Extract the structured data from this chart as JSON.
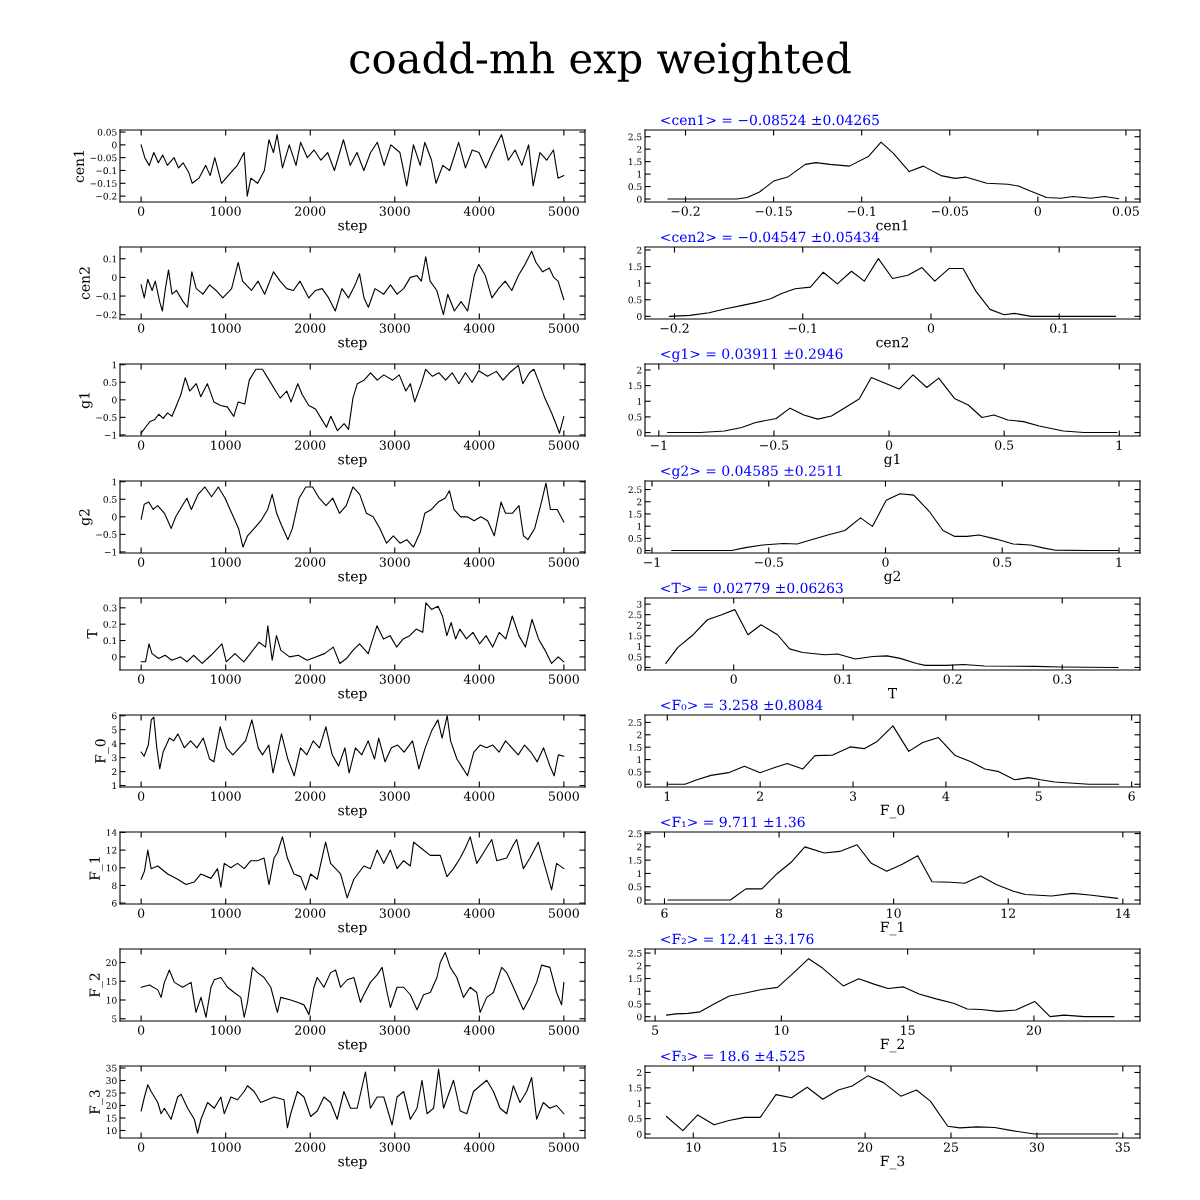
{
  "chart_data": [
    {
      "type": "line",
      "title": "coadd-mh exp weighted",
      "xlabel": "step",
      "ylabel": "cen1",
      "xlim": [
        -250,
        5250
      ],
      "xticks": [
        0,
        1000,
        2000,
        3000,
        4000,
        5000
      ],
      "ylim": [
        -0.223,
        0.058
      ],
      "yticks": [
        -0.2,
        -0.15,
        -0.1,
        -0.05,
        0,
        0.05
      ],
      "color": "#000000",
      "x": [
        0,
        43,
        96,
        150,
        203,
        256,
        310,
        390,
        443,
        497,
        566,
        604,
        684,
        764,
        817,
        871,
        951,
        1004,
        1084,
        1138,
        1218,
        1255,
        1298,
        1378,
        1458,
        1512,
        1565,
        1608,
        1672,
        1752,
        1832,
        1886,
        1966,
        2046,
        2126,
        2206,
        2286,
        2393,
        2473,
        2553,
        2634,
        2714,
        2794,
        2874,
        2954,
        3061,
        3141,
        3221,
        3301,
        3355,
        3435,
        3488,
        3568,
        3649,
        3755,
        3836,
        3916,
        3996,
        4076,
        4156,
        4263,
        4343,
        4423,
        4503,
        4583,
        4637,
        4717,
        4797,
        4877,
        4931,
        5000
      ],
      "values": [
        0,
        -0.05,
        -0.08,
        -0.03,
        -0.07,
        -0.04,
        -0.08,
        -0.05,
        -0.09,
        -0.07,
        -0.11,
        -0.15,
        -0.13,
        -0.08,
        -0.12,
        -0.05,
        -0.15,
        -0.13,
        -0.1,
        -0.08,
        -0.03,
        -0.2,
        -0.13,
        -0.15,
        -0.1,
        0.02,
        -0.03,
        0.04,
        -0.09,
        0,
        -0.08,
        0.01,
        -0.05,
        -0.02,
        -0.06,
        -0.03,
        -0.1,
        0.02,
        -0.08,
        -0.03,
        -0.1,
        -0.03,
        0.01,
        -0.08,
        0,
        -0.03,
        -0.16,
        0,
        -0.08,
        0.01,
        -0.06,
        -0.15,
        -0.08,
        -0.1,
        0.01,
        -0.09,
        -0.02,
        -0.03,
        -0.09,
        -0.03,
        0.04,
        -0.06,
        -0.02,
        -0.08,
        0,
        -0.16,
        -0.03,
        -0.06,
        -0.02,
        -0.13,
        -0.12
      ]
    },
    {
      "type": "line",
      "xlabel": "cen1",
      "annotations": [
        "<cen1> = −0.08524 ±0.04265"
      ],
      "xlim": [
        -0.223,
        0.058
      ],
      "xticks": [
        -0.2,
        -0.15,
        -0.1,
        -0.05,
        0,
        0.05
      ],
      "ylim": [
        -0.12,
        2.77
      ],
      "yticks": [
        0,
        0.5,
        1,
        1.5,
        2,
        2.5
      ],
      "color": "#000000",
      "x": [
        -0.21,
        -0.171,
        -0.165,
        -0.158,
        -0.15,
        -0.142,
        -0.132,
        -0.126,
        -0.118,
        -0.107,
        -0.096,
        -0.089,
        -0.082,
        -0.073,
        -0.065,
        -0.055,
        -0.047,
        -0.041,
        -0.029,
        -0.017,
        -0.011,
        -0.005,
        0.005,
        0.013,
        0.02,
        0.03,
        0.038,
        0.046
      ],
      "values": [
        0,
        0,
        0.06,
        0.28,
        0.72,
        0.88,
        1.39,
        1.46,
        1.39,
        1.32,
        1.72,
        2.28,
        1.83,
        1.1,
        1.32,
        0.94,
        0.83,
        0.88,
        0.63,
        0.59,
        0.52,
        0.34,
        0.06,
        0.03,
        0.1,
        0.03,
        0.1,
        0.01
      ]
    },
    {
      "type": "line",
      "xlabel": "step",
      "ylabel": "cen2",
      "xlim": [
        -250,
        5250
      ],
      "xticks": [
        0,
        1000,
        2000,
        3000,
        4000,
        5000
      ],
      "ylim": [
        -0.223,
        0.163
      ],
      "yticks": [
        -0.2,
        -0.1,
        0,
        0.1
      ],
      "color": "#000000",
      "x": [
        0,
        37,
        78,
        130,
        167,
        219,
        251,
        287,
        324,
        365,
        418,
        496,
        548,
        600,
        652,
        731,
        809,
        887,
        966,
        1070,
        1148,
        1200,
        1305,
        1383,
        1461,
        1566,
        1644,
        1722,
        1801,
        1879,
        1983,
        2062,
        2140,
        2218,
        2296,
        2375,
        2453,
        2531,
        2583,
        2636,
        2688,
        2766,
        2870,
        2949,
        3027,
        3105,
        3184,
        3262,
        3314,
        3366,
        3418,
        3497,
        3575,
        3627,
        3705,
        3784,
        3862,
        3940,
        3993,
        4071,
        4149,
        4227,
        4306,
        4384,
        4462,
        4541,
        4619,
        4671,
        4749,
        4828,
        4880,
        4932,
        5000
      ],
      "values": [
        -0.04,
        -0.11,
        -0.01,
        -0.07,
        -0.02,
        -0.13,
        -0.18,
        -0.06,
        0.04,
        -0.09,
        -0.07,
        -0.13,
        -0.16,
        0.03,
        -0.06,
        -0.09,
        -0.04,
        -0.07,
        -0.11,
        -0.06,
        0.08,
        -0.02,
        -0.07,
        -0.02,
        -0.09,
        0.03,
        -0.02,
        -0.06,
        -0.07,
        -0.02,
        -0.11,
        -0.07,
        -0.06,
        -0.11,
        -0.18,
        -0.06,
        -0.11,
        -0.04,
        0.02,
        -0.11,
        -0.16,
        -0.06,
        -0.09,
        -0.04,
        -0.09,
        -0.06,
        0,
        0.01,
        -0.02,
        0.11,
        -0.02,
        -0.07,
        -0.2,
        -0.09,
        -0.18,
        -0.13,
        -0.18,
        0.01,
        0.07,
        0.01,
        -0.11,
        -0.06,
        -0.02,
        -0.07,
        0.01,
        0.07,
        0.14,
        0.08,
        0.03,
        0.05,
        0,
        -0.02,
        -0.12
      ]
    },
    {
      "type": "line",
      "xlabel": "cen2",
      "annotations": [
        "<cen2> = −0.04547 ±0.05434"
      ],
      "xlim": [
        -0.223,
        0.163
      ],
      "xticks": [
        -0.2,
        -0.1,
        0,
        0.1
      ],
      "ylim": [
        -0.08,
        2.09
      ],
      "yticks": [
        0,
        0.5,
        1,
        1.5,
        2
      ],
      "color": "#000000",
      "x": [
        -0.204,
        -0.188,
        -0.173,
        -0.16,
        -0.147,
        -0.136,
        -0.125,
        -0.117,
        -0.106,
        -0.094,
        -0.084,
        -0.073,
        -0.062,
        -0.052,
        -0.041,
        -0.03,
        -0.018,
        -0.007,
        0.003,
        0.014,
        0.025,
        0.035,
        0.046,
        0.057,
        0.065,
        0.078,
        0.094,
        0.144
      ],
      "values": [
        0,
        0.03,
        0.11,
        0.23,
        0.33,
        0.42,
        0.53,
        0.68,
        0.83,
        0.88,
        1.33,
        0.98,
        1.36,
        1.06,
        1.74,
        1.14,
        1.24,
        1.47,
        1.06,
        1.44,
        1.44,
        0.76,
        0.21,
        0.05,
        0.09,
        0,
        0,
        0
      ]
    },
    {
      "type": "line",
      "xlabel": "step",
      "ylabel": "g1",
      "xlim": [
        -250,
        5250
      ],
      "xticks": [
        0,
        1000,
        2000,
        3000,
        4000,
        5000
      ],
      "ylim": [
        -1.03,
        1.02
      ],
      "yticks": [
        -1,
        -0.5,
        0,
        0.5,
        1
      ],
      "color": "#000000",
      "x": [
        0,
        52,
        104,
        157,
        209,
        261,
        313,
        365,
        418,
        470,
        522,
        574,
        652,
        705,
        783,
        861,
        939,
        1018,
        1096,
        1148,
        1226,
        1279,
        1357,
        1435,
        1514,
        1592,
        1644,
        1722,
        1774,
        1853,
        1905,
        1983,
        2062,
        2140,
        2192,
        2244,
        2322,
        2401,
        2453,
        2505,
        2557,
        2636,
        2714,
        2792,
        2870,
        2975,
        3053,
        3131,
        3184,
        3236,
        3314,
        3366,
        3445,
        3523,
        3601,
        3679,
        3758,
        3836,
        3914,
        3993,
        4097,
        4201,
        4280,
        4358,
        4462,
        4514,
        4593,
        4645,
        4697,
        4775,
        4854,
        4906,
        4948,
        5000
      ],
      "values": [
        -0.95,
        -0.78,
        -0.62,
        -0.57,
        -0.41,
        -0.53,
        -0.37,
        -0.47,
        -0.16,
        0.15,
        0.63,
        0.25,
        0.46,
        0.09,
        0.46,
        -0.06,
        -0.16,
        -0.2,
        -0.47,
        -0.06,
        -0.12,
        0.56,
        0.87,
        0.87,
        0.56,
        0.25,
        0.05,
        0.25,
        -0.06,
        0.46,
        0.15,
        -0.16,
        -0.26,
        -0.57,
        -0.78,
        -0.47,
        -0.88,
        -0.68,
        -0.84,
        0.05,
        0.46,
        0.56,
        0.77,
        0.56,
        0.71,
        0.56,
        0.71,
        0.25,
        0.46,
        -0.06,
        0.46,
        0.87,
        0.67,
        0.77,
        0.56,
        0.77,
        0.46,
        0.77,
        0.5,
        0.83,
        0.67,
        0.81,
        0.56,
        0.77,
        0.98,
        0.46,
        0.77,
        0.87,
        0.56,
        0.05,
        -0.37,
        -0.68,
        -0.95,
        -0.47
      ]
    },
    {
      "type": "line",
      "xlabel": "g1",
      "annotations": [
        "<g1> = 0.03911 ±0.2946"
      ],
      "xlim": [
        -1.06,
        1.09
      ],
      "xticks": [
        -1,
        -0.5,
        0,
        0.5,
        1
      ],
      "ylim": [
        -0.11,
        2.19
      ],
      "yticks": [
        0,
        0.5,
        1,
        1.5,
        2
      ],
      "color": "#000000",
      "x": [
        -0.962,
        -0.82,
        -0.715,
        -0.64,
        -0.58,
        -0.49,
        -0.43,
        -0.37,
        -0.31,
        -0.25,
        -0.19,
        -0.13,
        -0.077,
        -0.009,
        0.044,
        0.104,
        0.164,
        0.216,
        0.284,
        0.344,
        0.404,
        0.456,
        0.516,
        0.584,
        0.652,
        0.757,
        0.847,
        0.99
      ],
      "values": [
        0,
        0,
        0.05,
        0.16,
        0.32,
        0.45,
        0.78,
        0.56,
        0.43,
        0.53,
        0.8,
        1.07,
        1.76,
        1.55,
        1.39,
        1.84,
        1.44,
        1.74,
        1.09,
        0.88,
        0.48,
        0.56,
        0.4,
        0.35,
        0.21,
        0.05,
        0,
        0
      ]
    },
    {
      "type": "line",
      "xlabel": "step",
      "ylabel": "g2",
      "xlim": [
        -250,
        5250
      ],
      "xticks": [
        0,
        1000,
        2000,
        3000,
        4000,
        5000
      ],
      "ylim": [
        -1.03,
        1.02
      ],
      "yticks": [
        -1,
        -0.5,
        0,
        0.5,
        1
      ],
      "color": "#000000",
      "x": [
        0,
        37,
        90,
        143,
        196,
        276,
        356,
        409,
        488,
        541,
        594,
        674,
        754,
        833,
        913,
        993,
        1072,
        1152,
        1205,
        1258,
        1338,
        1417,
        1497,
        1550,
        1603,
        1656,
        1736,
        1789,
        1868,
        1948,
        2028,
        2107,
        2187,
        2267,
        2346,
        2426,
        2505,
        2585,
        2665,
        2744,
        2824,
        2903,
        2983,
        3063,
        3142,
        3222,
        3302,
        3355,
        3434,
        3514,
        3594,
        3647,
        3700,
        3779,
        3859,
        3939,
        4018,
        4098,
        4177,
        4257,
        4310,
        4390,
        4469,
        4522,
        4575,
        4655,
        4735,
        4788,
        4841,
        4921,
        5000
      ],
      "values": [
        -0.07,
        0.36,
        0.42,
        0.21,
        0.32,
        0.1,
        -0.33,
        0,
        0.32,
        0.53,
        0.21,
        0.64,
        0.85,
        0.57,
        0.85,
        0.53,
        0.1,
        -0.33,
        -0.86,
        -0.54,
        -0.33,
        -0.11,
        0.21,
        0.64,
        0.1,
        -0.22,
        -0.65,
        -0.33,
        0.53,
        0.85,
        0.85,
        0.53,
        0.32,
        0.53,
        0.1,
        0.32,
        0.85,
        0.64,
        0.1,
        0,
        -0.33,
        -0.75,
        -0.54,
        -0.75,
        -0.65,
        -0.86,
        -0.43,
        0.1,
        0.21,
        0.42,
        0.53,
        0.74,
        0.21,
        0,
        0,
        -0.11,
        0,
        -0.11,
        -0.54,
        0.42,
        0.1,
        0.1,
        0.32,
        -0.54,
        -0.65,
        -0.33,
        0.42,
        0.96,
        0.21,
        0.21,
        -0.15
      ]
    },
    {
      "type": "line",
      "xlabel": "g2",
      "annotations": [
        "<g2> = 0.04585 ±0.2511"
      ],
      "xlim": [
        -1.03,
        1.09
      ],
      "xticks": [
        -1,
        -0.5,
        0,
        0.5,
        1
      ],
      "ylim": [
        -0.1,
        2.85
      ],
      "yticks": [
        0,
        0.5,
        1,
        1.5,
        2,
        2.5
      ],
      "color": "#000000",
      "x": [
        -0.916,
        -0.659,
        -0.6,
        -0.526,
        -0.438,
        -0.379,
        -0.306,
        -0.247,
        -0.174,
        -0.107,
        -0.056,
        0.003,
        0.062,
        0.121,
        0.187,
        0.246,
        0.297,
        0.349,
        0.4,
        0.474,
        0.547,
        0.621,
        0.679,
        0.724,
        0.871,
        0.996
      ],
      "values": [
        0,
        0,
        0.12,
        0.23,
        0.29,
        0.27,
        0.47,
        0.64,
        0.82,
        1.34,
        0.99,
        2.06,
        2.33,
        2.27,
        1.61,
        0.82,
        0.58,
        0.58,
        0.64,
        0.47,
        0.27,
        0.23,
        0.1,
        0.02,
        0,
        0
      ]
    },
    {
      "type": "line",
      "xlabel": "step",
      "ylabel": "T",
      "xlim": [
        -250,
        5250
      ],
      "xticks": [
        0,
        1000,
        2000,
        3000,
        4000,
        5000
      ],
      "ylim": [
        -0.08,
        0.36
      ],
      "yticks": [
        0,
        0.1,
        0.2,
        0.3
      ],
      "color": "#000000",
      "x": [
        0,
        52,
        93,
        129,
        207,
        284,
        362,
        465,
        542,
        620,
        723,
        826,
        956,
        1007,
        1110,
        1214,
        1291,
        1395,
        1472,
        1498,
        1550,
        1601,
        1653,
        1756,
        1859,
        1963,
        2066,
        2169,
        2273,
        2350,
        2428,
        2505,
        2583,
        2686,
        2789,
        2867,
        2944,
        3022,
        3099,
        3177,
        3254,
        3331,
        3368,
        3435,
        3512,
        3564,
        3616,
        3667,
        3719,
        3770,
        3848,
        3925,
        4003,
        4080,
        4158,
        4235,
        4313,
        4390,
        4468,
        4545,
        4623,
        4700,
        4778,
        4855,
        4933,
        5000
      ],
      "values": [
        -0.03,
        -0.03,
        0.08,
        0.02,
        -0.01,
        0.01,
        -0.02,
        0,
        -0.03,
        0.01,
        -0.04,
        0.01,
        0.08,
        -0.03,
        0.02,
        -0.03,
        0.02,
        0.09,
        0.06,
        0.19,
        -0.02,
        0.13,
        0.04,
        0,
        0.01,
        -0.02,
        0,
        0.02,
        0.06,
        -0.04,
        -0.01,
        0.04,
        0.08,
        0.02,
        0.19,
        0.11,
        0.13,
        0.06,
        0.11,
        0.13,
        0.17,
        0.15,
        0.33,
        0.29,
        0.31,
        0.25,
        0.13,
        0.21,
        0.11,
        0.17,
        0.11,
        0.15,
        0.08,
        0.13,
        0.06,
        0.15,
        0.11,
        0.25,
        0.13,
        0.06,
        0.23,
        0.11,
        0.04,
        -0.04,
        0,
        -0.03
      ]
    },
    {
      "type": "line",
      "xlabel": "T",
      "annotations": [
        "<T> = 0.02779 ±0.06263"
      ],
      "xlim": [
        -0.081,
        0.371
      ],
      "xticks": [
        0,
        0.1,
        0.2,
        0.3
      ],
      "ylim": [
        -0.12,
        3.29
      ],
      "yticks": [
        0,
        0.5,
        1,
        1.5,
        2,
        2.5,
        3
      ],
      "color": "#000000",
      "x": [
        -0.062,
        -0.051,
        -0.037,
        -0.024,
        -0.011,
        0.001,
        0.013,
        0.025,
        0.04,
        0.051,
        0.063,
        0.083,
        0.095,
        0.111,
        0.127,
        0.14,
        0.152,
        0.167,
        0.175,
        0.194,
        0.21,
        0.229,
        0.276,
        0.298,
        0.351
      ],
      "values": [
        0.19,
        0.95,
        1.55,
        2.26,
        2.5,
        2.74,
        1.55,
        2.02,
        1.55,
        0.88,
        0.71,
        0.6,
        0.64,
        0.4,
        0.52,
        0.55,
        0.43,
        0.19,
        0.1,
        0.1,
        0.14,
        0.07,
        0.05,
        0.02,
        0
      ]
    },
    {
      "type": "line",
      "xlabel": "step",
      "ylabel": "F_0",
      "xlim": [
        -250,
        5250
      ],
      "xticks": [
        0,
        1000,
        2000,
        3000,
        4000,
        5000
      ],
      "ylim": [
        0.9,
        6.05
      ],
      "yticks": [
        1,
        2,
        3,
        4,
        5,
        6
      ],
      "color": "#000000",
      "x": [
        0,
        35,
        85,
        120,
        150,
        185,
        220,
        260,
        335,
        385,
        435,
        510,
        585,
        660,
        735,
        810,
        860,
        935,
        1010,
        1085,
        1160,
        1235,
        1310,
        1385,
        1435,
        1510,
        1560,
        1660,
        1735,
        1810,
        1885,
        1960,
        2035,
        2110,
        2185,
        2260,
        2335,
        2410,
        2460,
        2535,
        2610,
        2685,
        2760,
        2810,
        2885,
        2960,
        3035,
        3110,
        3210,
        3285,
        3360,
        3435,
        3510,
        3560,
        3620,
        3660,
        3735,
        3810,
        3860,
        3935,
        4010,
        4085,
        4160,
        4235,
        4310,
        4385,
        4460,
        4535,
        4610,
        4685,
        4760,
        4835,
        4885,
        4935,
        5000
      ],
      "values": [
        3.4,
        3.1,
        3.9,
        5.7,
        5.9,
        3.7,
        2.2,
        3.4,
        4.4,
        4.2,
        4.7,
        3.7,
        4.2,
        3.7,
        4.4,
        2.9,
        2.7,
        5.2,
        3.7,
        3.2,
        3.7,
        4.2,
        5.7,
        3.7,
        3.2,
        3.9,
        1.9,
        4.7,
        2.9,
        1.7,
        3.7,
        3.2,
        4.2,
        3.7,
        5.2,
        3.2,
        2.4,
        3.7,
        1.9,
        3.7,
        3.2,
        4.2,
        2.9,
        4.4,
        2.7,
        3.7,
        3.9,
        3.4,
        4.2,
        2.2,
        3.7,
        4.9,
        5.7,
        4.4,
        6.0,
        4.2,
        2.9,
        2.2,
        1.7,
        3.4,
        3.9,
        3.7,
        3.9,
        3.4,
        4.2,
        3.7,
        3.2,
        3.9,
        3.4,
        2.7,
        3.7,
        2.4,
        1.7,
        3.2,
        3.1
      ]
    },
    {
      "type": "line",
      "xlabel": "F_0",
      "annotations": [
        "<F₀> = 3.258 ±0.8084"
      ],
      "xlim": [
        0.76,
        6.09
      ],
      "xticks": [
        1,
        2,
        3,
        4,
        5,
        6
      ],
      "ylim": [
        -0.11,
        2.8
      ],
      "yticks": [
        0,
        0.5,
        1,
        1.5,
        2,
        2.5
      ],
      "color": "#000000",
      "x": [
        1.0,
        1.19,
        1.32,
        1.47,
        1.66,
        1.83,
        2.0,
        2.15,
        2.29,
        2.46,
        2.59,
        2.78,
        2.97,
        3.12,
        3.26,
        3.43,
        3.6,
        3.75,
        3.92,
        4.1,
        4.27,
        4.42,
        4.57,
        4.74,
        4.89,
        5.02,
        5.17,
        5.54,
        5.86
      ],
      "values": [
        0,
        0,
        0.18,
        0.36,
        0.47,
        0.73,
        0.47,
        0.67,
        0.84,
        0.62,
        1.16,
        1.18,
        1.51,
        1.44,
        1.73,
        2.36,
        1.33,
        1.69,
        1.89,
        1.16,
        0.91,
        0.62,
        0.51,
        0.18,
        0.27,
        0.18,
        0.09,
        0,
        0
      ]
    },
    {
      "type": "line",
      "xlabel": "step",
      "ylabel": "F_1",
      "xlim": [
        -250,
        5250
      ],
      "xticks": [
        0,
        1000,
        2000,
        3000,
        4000,
        5000
      ],
      "ylim": [
        5.9,
        14.05
      ],
      "yticks": [
        6,
        8,
        10,
        12,
        14
      ],
      "color": "#000000",
      "x": [
        0,
        39,
        79,
        118,
        197,
        314,
        432,
        531,
        629,
        708,
        826,
        904,
        943,
        983,
        1061,
        1140,
        1219,
        1297,
        1376,
        1454,
        1513,
        1572,
        1612,
        1671,
        1730,
        1808,
        1887,
        1946,
        2005,
        2083,
        2182,
        2241,
        2359,
        2437,
        2516,
        2634,
        2712,
        2791,
        2870,
        2948,
        3027,
        3105,
        3184,
        3223,
        3302,
        3420,
        3538,
        3617,
        3695,
        3774,
        3833,
        3892,
        3970,
        4049,
        4147,
        4206,
        4324,
        4403,
        4442,
        4521,
        4599,
        4697,
        4757,
        4855,
        4914,
        5000
      ],
      "values": [
        8.7,
        9.6,
        12.0,
        9.9,
        10.2,
        9.3,
        8.7,
        8.1,
        8.4,
        9.3,
        8.8,
        9.9,
        7.8,
        10.5,
        10.0,
        10.5,
        9.9,
        10.8,
        10.8,
        11.1,
        8.1,
        11.1,
        11.7,
        13.5,
        11.1,
        9.3,
        9.0,
        7.5,
        9.3,
        8.7,
        12.9,
        10.5,
        9.3,
        6.6,
        8.7,
        10.2,
        9.9,
        12.0,
        10.5,
        12.0,
        9.9,
        10.8,
        10.2,
        12.9,
        12.3,
        11.4,
        11.4,
        9.0,
        9.9,
        11.1,
        12.2,
        13.5,
        10.5,
        11.7,
        13.2,
        10.8,
        11.1,
        12.6,
        13.2,
        9.9,
        11.1,
        12.9,
        10.8,
        7.5,
        10.5,
        9.9
      ]
    },
    {
      "type": "line",
      "xlabel": "F_1",
      "annotations": [
        "<F₁> = 9.711 ±1.36"
      ],
      "xlim": [
        5.66,
        14.3
      ],
      "xticks": [
        6,
        8,
        10,
        12,
        14
      ],
      "ylim": [
        -0.15,
        2.56
      ],
      "yticks": [
        0,
        0.5,
        1,
        1.5,
        2,
        2.5
      ],
      "color": "#000000",
      "x": [
        6.06,
        7.15,
        7.42,
        7.7,
        7.97,
        8.21,
        8.45,
        8.79,
        9.06,
        9.36,
        9.61,
        9.88,
        10.15,
        10.42,
        10.67,
        11.0,
        11.24,
        11.52,
        11.79,
        12.09,
        12.3,
        12.76,
        13.12,
        13.42,
        13.91
      ],
      "values": [
        0,
        0,
        0.42,
        0.42,
        1.0,
        1.42,
        2.0,
        1.77,
        1.83,
        2.08,
        1.38,
        1.08,
        1.35,
        1.67,
        0.69,
        0.67,
        0.63,
        0.9,
        0.58,
        0.33,
        0.21,
        0.15,
        0.25,
        0.19,
        0.06
      ]
    },
    {
      "type": "line",
      "xlabel": "step",
      "ylabel": "F_2",
      "xlim": [
        -250,
        5250
      ],
      "xticks": [
        0,
        1000,
        2000,
        3000,
        4000,
        5000
      ],
      "ylim": [
        4.4,
        23.6
      ],
      "yticks": [
        5,
        10,
        15,
        20
      ],
      "color": "#000000",
      "x": [
        0,
        98,
        197,
        236,
        275,
        334,
        393,
        491,
        590,
        649,
        708,
        767,
        826,
        865,
        943,
        1022,
        1101,
        1179,
        1219,
        1258,
        1317,
        1376,
        1454,
        1533,
        1612,
        1651,
        1769,
        1848,
        1926,
        1985,
        2044,
        2083,
        2162,
        2241,
        2300,
        2359,
        2437,
        2516,
        2594,
        2634,
        2712,
        2791,
        2850,
        2909,
        2948,
        3027,
        3105,
        3184,
        3263,
        3341,
        3420,
        3499,
        3538,
        3597,
        3656,
        3734,
        3813,
        3892,
        3970,
        4010,
        4088,
        4167,
        4265,
        4324,
        4403,
        4481,
        4521,
        4599,
        4678,
        4737,
        4835,
        4914,
        4973,
        5000
      ],
      "values": [
        13.4,
        14.0,
        12.7,
        10.7,
        14.7,
        18.0,
        14.7,
        13.4,
        14.7,
        6.7,
        10.7,
        5.4,
        13.4,
        15.4,
        16.0,
        13.4,
        12.0,
        10.7,
        5.4,
        9.4,
        18.7,
        17.3,
        16.0,
        13.4,
        6.7,
        10.7,
        10.0,
        9.4,
        8.7,
        6.1,
        13.4,
        16.0,
        13.4,
        17.3,
        18.0,
        13.4,
        15.4,
        16.0,
        9.4,
        11.4,
        14.7,
        16.7,
        18.7,
        12.0,
        8.0,
        13.4,
        13.4,
        11.4,
        7.4,
        11.4,
        12.0,
        16.0,
        20.0,
        22.7,
        18.7,
        16.0,
        10.7,
        13.4,
        12.0,
        6.7,
        10.7,
        12.0,
        18.7,
        17.3,
        13.4,
        9.4,
        7.4,
        10.7,
        14.7,
        19.3,
        18.7,
        12.0,
        8.7,
        14.7
      ]
    },
    {
      "type": "line",
      "xlabel": "F_2",
      "annotations": [
        "<F₂> = 12.41 ±3.176"
      ],
      "xlim": [
        4.6,
        24.2
      ],
      "xticks": [
        5,
        10,
        15,
        20
      ],
      "ylim": [
        -0.17,
        2.66
      ],
      "yticks": [
        0,
        0.5,
        1,
        1.5,
        2,
        2.5
      ],
      "color": "#000000",
      "x": [
        5.45,
        5.82,
        6.3,
        6.78,
        7.39,
        7.94,
        8.48,
        9.17,
        9.85,
        10.46,
        11.08,
        11.63,
        12.45,
        13.06,
        13.67,
        14.22,
        14.84,
        15.45,
        16.13,
        16.82,
        17.36,
        17.91,
        18.59,
        19.28,
        20.03,
        20.64,
        21.19,
        22.01,
        23.17
      ],
      "values": [
        0.06,
        0.11,
        0.13,
        0.19,
        0.53,
        0.81,
        0.91,
        1.06,
        1.15,
        1.7,
        2.28,
        1.91,
        1.21,
        1.49,
        1.28,
        1.11,
        1.17,
        0.89,
        0.7,
        0.53,
        0.3,
        0.28,
        0.21,
        0.26,
        0.6,
        0,
        0.06,
        0,
        0
      ]
    },
    {
      "type": "line",
      "xlabel": "step",
      "ylabel": "F_3",
      "xlim": [
        -250,
        5250
      ],
      "xticks": [
        0,
        1000,
        2000,
        3000,
        4000,
        5000
      ],
      "ylim": [
        7.0,
        35.8
      ],
      "yticks": [
        10,
        15,
        20,
        25,
        30,
        35
      ],
      "color": "#000000",
      "x": [
        0,
        39,
        79,
        118,
        197,
        236,
        275,
        354,
        432,
        472,
        550,
        629,
        668,
        708,
        786,
        865,
        943,
        983,
        1061,
        1140,
        1219,
        1258,
        1337,
        1415,
        1494,
        1572,
        1690,
        1730,
        1769,
        1848,
        1926,
        2005,
        2083,
        2162,
        2241,
        2319,
        2398,
        2477,
        2555,
        2653,
        2712,
        2791,
        2870,
        2968,
        3027,
        3105,
        3184,
        3263,
        3322,
        3381,
        3459,
        3518,
        3577,
        3695,
        3774,
        3852,
        3931,
        4010,
        4088,
        4167,
        4246,
        4324,
        4403,
        4481,
        4560,
        4619,
        4678,
        4757,
        4835,
        4914,
        5000
      ],
      "values": [
        17.8,
        23.4,
        28.3,
        25.6,
        21.2,
        16.7,
        18.9,
        14.5,
        23.4,
        24.5,
        18.9,
        14.5,
        8.9,
        14.5,
        21.2,
        18.9,
        23.4,
        16.7,
        23.4,
        22.3,
        25.6,
        27.9,
        25.6,
        21.2,
        22.3,
        23.4,
        22.3,
        11.1,
        16.7,
        25.6,
        23.4,
        15.6,
        17.8,
        23.4,
        21.2,
        14.5,
        25.6,
        18.9,
        18.9,
        33.4,
        18.9,
        23.4,
        23.4,
        12.2,
        23.4,
        25.6,
        14.5,
        18.9,
        30.1,
        16.7,
        18.9,
        34.6,
        18.9,
        30.1,
        17.8,
        16.7,
        25.6,
        27.9,
        30.1,
        25.6,
        18.9,
        16.7,
        27.9,
        21.2,
        25.6,
        31.2,
        14.5,
        21.2,
        18.9,
        20.0,
        16.7
      ]
    },
    {
      "type": "line",
      "xlabel": "F_3",
      "annotations": [
        "<F₃> = 18.6 ±4.525"
      ],
      "xlim": [
        7.19,
        36.0
      ],
      "xticks": [
        10,
        15,
        20,
        25,
        30,
        35
      ],
      "ylim": [
        -0.13,
        2.21
      ],
      "yticks": [
        0,
        0.5,
        1,
        1.5,
        2
      ],
      "color": "#000000",
      "x": [
        8.44,
        9.39,
        10.26,
        11.21,
        12.08,
        12.99,
        13.9,
        14.81,
        15.72,
        16.63,
        17.54,
        18.44,
        19.25,
        20.16,
        21.07,
        22.08,
        22.99,
        23.8,
        24.81,
        25.52,
        26.53,
        27.54,
        28.55,
        29.86,
        30.97,
        31.98,
        32.79,
        34.71
      ],
      "values": [
        0.57,
        0.11,
        0.62,
        0.3,
        0.44,
        0.54,
        0.54,
        1.28,
        1.18,
        1.52,
        1.13,
        1.43,
        1.56,
        1.89,
        1.67,
        1.23,
        1.43,
        1.07,
        0.25,
        0.2,
        0.23,
        0.21,
        0.11,
        0,
        0,
        0,
        0,
        0
      ]
    }
  ]
}
